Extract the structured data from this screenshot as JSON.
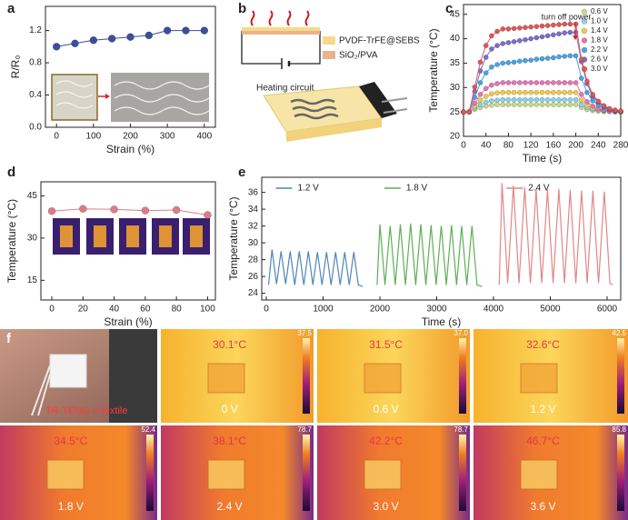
{
  "chart_data": [
    {
      "type": "line",
      "panel_label": "a",
      "xlabel": "Strain (%)",
      "ylabel": "R/R₀",
      "x": [
        0,
        50,
        100,
        150,
        200,
        250,
        300,
        350,
        400
      ],
      "series": [
        {
          "name": "R/R₀",
          "color": "#3c4f9a",
          "values": [
            1.0,
            1.04,
            1.08,
            1.1,
            1.12,
            1.14,
            1.2,
            1.2,
            1.2
          ]
        }
      ],
      "xlim": [
        -30,
        430
      ],
      "xticks": [
        0,
        100,
        200,
        300,
        400
      ],
      "ylim": [
        0,
        1.5
      ],
      "yticks": [
        {
          "value": 0,
          "label": "0.0"
        },
        {
          "value": 0.4,
          "label": "0.4"
        },
        {
          "value": 0.8,
          "label": "0.8"
        },
        {
          "value": 1.2,
          "label": "1.2"
        }
      ],
      "markers": true,
      "legend": "none"
    },
    {
      "type": "line",
      "panel_label": "c",
      "xlabel": "Time (s)",
      "ylabel": "Temperature (°C)",
      "annotation": "turn off power",
      "x": [
        0,
        10,
        20,
        30,
        40,
        50,
        60,
        70,
        80,
        90,
        100,
        110,
        120,
        130,
        140,
        150,
        160,
        170,
        180,
        190,
        200,
        210,
        220,
        230,
        240,
        250,
        260,
        270,
        280
      ],
      "series": [
        {
          "name": "0.6 V",
          "color": "#c9d98c",
          "values": [
            25,
            25,
            25.5,
            25.9,
            26.2,
            26.4,
            26.5,
            26.5,
            26.5,
            26.5,
            26.5,
            26.5,
            26.5,
            26.5,
            26.5,
            26.5,
            26.5,
            26.5,
            26.5,
            26.5,
            26.5,
            25.9,
            25.5,
            25.3,
            25.2,
            25.1,
            25.1,
            25,
            25
          ]
        },
        {
          "name": "1.0 V",
          "color": "#8fd0e8",
          "values": [
            25,
            25,
            25.8,
            26.5,
            27,
            27.3,
            27.4,
            27.5,
            27.5,
            27.5,
            27.5,
            27.5,
            27.5,
            27.5,
            27.5,
            27.5,
            27.5,
            27.5,
            27.5,
            27.5,
            27.5,
            26.5,
            25.9,
            25.5,
            25.3,
            25.2,
            25.1,
            25.1,
            25
          ]
        },
        {
          "name": "1.4 V",
          "color": "#f1c84c",
          "values": [
            25,
            25,
            26.2,
            27.4,
            28.2,
            28.7,
            28.9,
            29,
            29,
            29,
            29,
            29,
            29,
            29,
            29,
            29,
            29,
            29,
            29,
            29,
            29,
            27.4,
            26.4,
            25.8,
            25.5,
            25.3,
            25.2,
            25.1,
            25
          ]
        },
        {
          "name": "1.8 V",
          "color": "#e873b4",
          "values": [
            25,
            25,
            26.8,
            28.6,
            29.8,
            30.5,
            30.8,
            31,
            31,
            31,
            31,
            31,
            31,
            31,
            31,
            31,
            31,
            31,
            31,
            31,
            31,
            28.6,
            27.1,
            26.2,
            25.7,
            25.4,
            25.2,
            25.1,
            25.1
          ]
        },
        {
          "name": "2.2 V",
          "color": "#4aa4df",
          "values": [
            25,
            25,
            28,
            31,
            33,
            34.2,
            34.7,
            35,
            35.1,
            35.2,
            35.4,
            35.5,
            35.6,
            35.8,
            35.9,
            36,
            36.1,
            36.3,
            36.4,
            36.5,
            36.5,
            31.9,
            29,
            27.3,
            26.4,
            25.8,
            25.5,
            25.2,
            25.1
          ]
        },
        {
          "name": "2.6 V",
          "color": "#7b70c6",
          "values": [
            25,
            25,
            29.2,
            33.4,
            36.2,
            37.9,
            38.6,
            39,
            39.2,
            39.4,
            39.6,
            39.8,
            40,
            40.2,
            40.4,
            40.6,
            40.8,
            41,
            41.2,
            41.3,
            41.3,
            35.3,
            30.8,
            28.2,
            27,
            26.1,
            25.6,
            25.3,
            25.2
          ]
        },
        {
          "name": "3.0 V",
          "color": "#e05757",
          "values": [
            25,
            25,
            30.1,
            35.2,
            38.6,
            40.6,
            41.5,
            42,
            42,
            42.1,
            42.2,
            42.3,
            42.4,
            42.5,
            42.6,
            42.7,
            42.8,
            42.9,
            43,
            43,
            43,
            35.8,
            31.3,
            28.6,
            27.2,
            26.3,
            25.7,
            25.4,
            25.2
          ]
        }
      ],
      "xlim": [
        0,
        280
      ],
      "xticks": [
        0,
        40,
        80,
        120,
        160,
        200,
        240,
        280
      ],
      "ylim": [
        20,
        47
      ],
      "yticks": [
        20,
        25,
        30,
        35,
        40,
        45
      ],
      "markers": true,
      "legend": "upper right"
    },
    {
      "type": "line",
      "panel_label": "d",
      "xlabel": "Strain (%)",
      "ylabel": "Temperature (°C)",
      "x": [
        0,
        20,
        40,
        60,
        80,
        100
      ],
      "series": [
        {
          "name": "Temperature",
          "color": "#e07b86",
          "values": [
            39.6,
            40.4,
            40.2,
            39.8,
            40.0,
            38.2
          ]
        }
      ],
      "xlim": [
        -7,
        105
      ],
      "xticks": [
        0,
        20,
        40,
        60,
        80,
        100
      ],
      "ylim": [
        8,
        50
      ],
      "yticks": [
        15,
        30,
        45
      ],
      "markers": true,
      "legend": "none"
    },
    {
      "type": "line",
      "panel_label": "e",
      "xlabel": "Time (s)",
      "ylabel": "Temperature (°C)",
      "series": [
        {
          "name": "1.2 V",
          "color": "#4f86b5",
          "x": [
            40,
            100,
            180,
            260,
            340,
            420,
            500,
            580,
            660,
            740,
            820,
            900,
            980,
            1060,
            1140,
            1220,
            1300,
            1380,
            1460,
            1540,
            1620,
            1700
          ],
          "values": [
            25.0,
            29.2,
            25.1,
            29.0,
            25.1,
            29.0,
            25.0,
            29.0,
            25.0,
            29.0,
            25.0,
            28.9,
            25.0,
            28.9,
            25.0,
            28.9,
            25.0,
            28.9,
            25.0,
            28.9,
            25.0,
            24.8
          ]
        },
        {
          "name": "1.8 V",
          "color": "#5daf55",
          "x": [
            1950,
            2000,
            2090,
            2180,
            2270,
            2360,
            2450,
            2540,
            2630,
            2720,
            2810,
            2900,
            2990,
            3080,
            3170,
            3260,
            3350,
            3440,
            3530,
            3620,
            3710,
            3800
          ],
          "values": [
            25.0,
            32.2,
            25.0,
            32.0,
            25.0,
            32.2,
            25.0,
            32.3,
            25.0,
            32.2,
            25.0,
            32.1,
            25.0,
            32.0,
            25.0,
            32.1,
            25.0,
            32.0,
            25.0,
            32.0,
            25.0,
            24.8
          ]
        },
        {
          "name": "2.4 V",
          "color": "#e38686",
          "x": [
            4100,
            4150,
            4250,
            4350,
            4450,
            4550,
            4650,
            4750,
            4850,
            4950,
            5050,
            5150,
            5250,
            5350,
            5450,
            5550,
            5650,
            5750,
            5850,
            5950,
            6050,
            6100
          ],
          "values": [
            25.0,
            37.1,
            25.2,
            36.8,
            25.2,
            36.6,
            25.2,
            36.4,
            25.2,
            36.3,
            25.2,
            36.4,
            25.2,
            36.3,
            25.2,
            36.2,
            25.2,
            36.2,
            25.2,
            36.1,
            25.2,
            25.0
          ]
        }
      ],
      "xlim": [
        -80,
        6240
      ],
      "xticks": [
        0,
        1000,
        2000,
        3000,
        4000,
        5000,
        6000
      ],
      "ylim": [
        23.2,
        37.8
      ],
      "yticks": [
        24,
        26,
        28,
        30,
        32,
        34,
        36
      ],
      "markers": false,
      "legend": "above series"
    }
  ],
  "diagram": {
    "panel_label": "b",
    "labels": [
      "PVDF-TrFE@SEBS",
      "SiO₂/PVA",
      "Heating circuit"
    ]
  },
  "photos": {
    "panel_label": "f",
    "caption": "TR-TENG e-textile",
    "temperatures": [
      "30.1°C",
      "31.5°C",
      "32.6°C",
      "34.5°C",
      "38.1°C",
      "42.2°C",
      "46.7°C"
    ],
    "voltages": [
      "0 V",
      "0.6 V",
      "1.2 V",
      "1.8 V",
      "2.4 V",
      "3.0 V",
      "3.6 V"
    ],
    "scale_max": [
      "37.5",
      "37.0",
      "42.5",
      "52.4",
      "78.7",
      "78.7",
      "85.8"
    ]
  }
}
